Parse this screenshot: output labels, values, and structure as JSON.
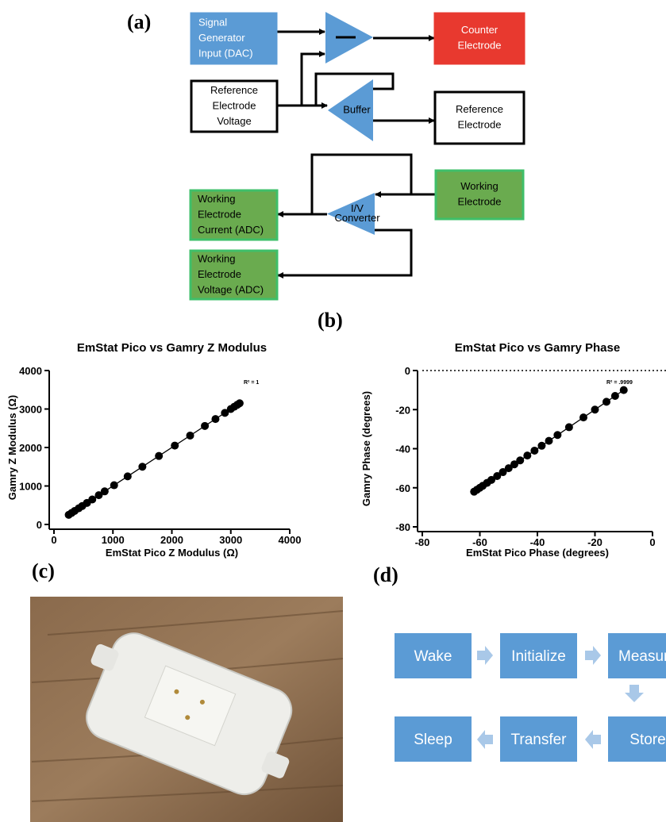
{
  "panel_labels": {
    "a": "(a)",
    "b": "(b)",
    "c": "(c)",
    "d": "(d)"
  },
  "diagram_a": {
    "nodes": [
      {
        "lines": [
          "Signal",
          "Generator",
          "Input (DAC)"
        ]
      },
      {
        "lines": [
          "Counter",
          "Electrode"
        ]
      },
      {
        "lines": [
          "Reference",
          "Electrode",
          "Voltage"
        ]
      },
      {
        "lines": [
          "Buffer"
        ]
      },
      {
        "lines": [
          "Reference",
          "Electrode"
        ]
      },
      {
        "lines": [
          "Working",
          "Electrode"
        ]
      },
      {
        "lines": [
          "I/V",
          "Converter"
        ]
      },
      {
        "lines": [
          "Working",
          "Electrode",
          "Current (ADC)"
        ]
      },
      {
        "lines": [
          "Working",
          "Electrode",
          "Voltage (ADC)"
        ]
      }
    ]
  },
  "chart_data": [
    {
      "type": "scatter",
      "title": "EmStat Pico vs Gamry Z Modulus",
      "x_label": "EmStat Pico Z Modulus (Ω)",
      "y_label": "Gamry Z Modulus (Ω)",
      "annotation": "R² = 1",
      "color": "#000000",
      "x": [
        250,
        300,
        350,
        420,
        480,
        560,
        650,
        760,
        860,
        1020,
        1250,
        1500,
        1780,
        2050,
        2310,
        2560,
        2740,
        2900,
        3000,
        3060,
        3110,
        3150
      ],
      "values": [
        250,
        300,
        350,
        420,
        480,
        560,
        650,
        760,
        860,
        1020,
        1250,
        1500,
        1780,
        2050,
        2310,
        2560,
        2740,
        2900,
        3000,
        3060,
        3110,
        3150
      ],
      "fit_line": {
        "x": [
          250,
          3150
        ],
        "y": [
          250,
          3150
        ]
      },
      "xlim": [
        0,
        4000
      ],
      "xticks": [
        0,
        1000,
        2000,
        3000,
        4000
      ],
      "ylim": [
        0,
        4000
      ],
      "yticks": [
        0,
        1000,
        2000,
        3000,
        4000
      ]
    },
    {
      "type": "scatter",
      "title": "EmStat Pico vs Gamry Phase",
      "x_label": "EmStat Pico Phase (degrees)",
      "y_label": "Gamry Phase (degrees)",
      "annotation": "R² = .9999",
      "color": "#000000",
      "x": [
        -62,
        -61,
        -60,
        -59,
        -57.5,
        -56,
        -54,
        -52,
        -50,
        -48,
        -46,
        -43.5,
        -41,
        -38.5,
        -36,
        -33,
        -29,
        -24,
        -20,
        -16,
        -13,
        -10
      ],
      "values": [
        -62,
        -61,
        -60,
        -59,
        -57.5,
        -56,
        -54,
        -52,
        -50,
        -48,
        -46,
        -43.5,
        -41,
        -38.5,
        -36,
        -33,
        -29,
        -24,
        -20,
        -16,
        -13,
        -10
      ],
      "fit_line": {
        "x": [
          -62,
          -10
        ],
        "y": [
          -62,
          -10
        ]
      },
      "xlim": [
        -80,
        0
      ],
      "xticks": [
        -80,
        -60,
        -40,
        -20,
        0
      ],
      "ylim": [
        -80,
        0
      ],
      "yticks": [
        -80,
        -60,
        -40,
        -20,
        0
      ]
    }
  ],
  "flow_d": {
    "steps": [
      "Wake",
      "Initialize",
      "Measure",
      "Store",
      "Transfer",
      "Sleep"
    ]
  }
}
